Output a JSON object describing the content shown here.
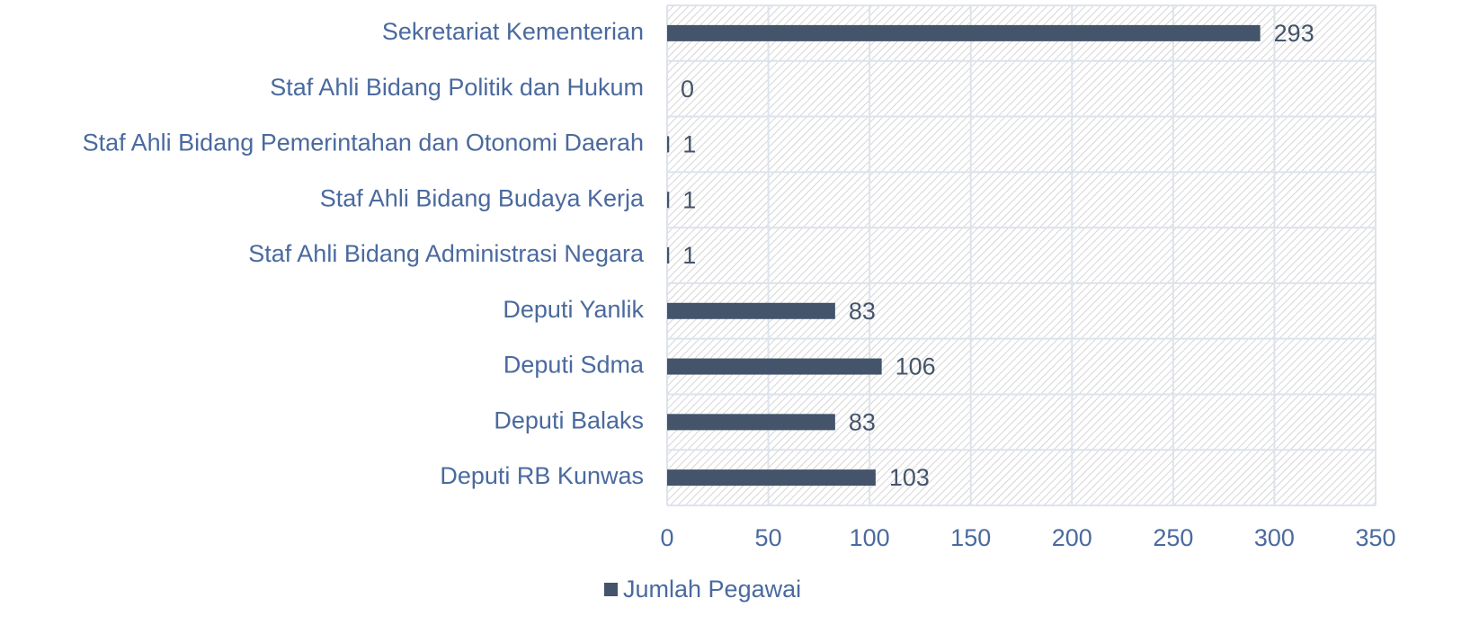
{
  "chart_data": {
    "type": "bar",
    "orientation": "horizontal",
    "categories": [
      "Sekretariat Kementerian",
      "Staf Ahli Bidang Politik dan Hukum",
      "Staf Ahli Bidang Pemerintahan dan Otonomi Daerah",
      "Staf Ahli Bidang Budaya Kerja",
      "Staf Ahli Bidang Administrasi Negara",
      "Deputi Yanlik",
      "Deputi Sdma",
      "Deputi Balaks",
      "Deputi RB Kunwas"
    ],
    "series": [
      {
        "name": "Jumlah Pegawai",
        "color": "#44546a",
        "values": [
          293,
          0,
          1,
          1,
          1,
          83,
          106,
          83,
          103
        ]
      }
    ],
    "xlim": [
      0,
      350
    ],
    "xticks": [
      0,
      50,
      100,
      150,
      200,
      250,
      300,
      350
    ],
    "grid": true,
    "legend": "bottom"
  }
}
